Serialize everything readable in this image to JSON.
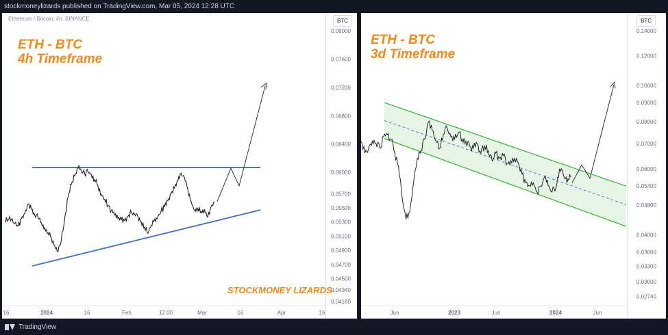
{
  "header": {
    "text": "stockmoneylizards published on TradingView.com, Mar 05, 2024 12:28 UTC"
  },
  "footer": {
    "brand": "TradingView"
  },
  "charts": {
    "left": {
      "symbol_info": "Ethereum / Bitcoin, 4h, BINANCE",
      "title_line1": "ETH - BTC",
      "title_line2": "4h Timeframe",
      "watermark": "STOCKMONEY LIZARDS",
      "currency": "BTC"
    },
    "right": {
      "title_line1": "ETH - BTC",
      "title_line2": "3d Timeframe",
      "currency": "BTC"
    }
  },
  "chart_data": [
    {
      "type": "line",
      "symbol": "Ethereum / Bitcoin, 4h, BINANCE",
      "y_scale": "linear",
      "ylim": [
        0.0412,
        0.0825
      ],
      "y_ticks": [
        "0.08000",
        "0.07600",
        "0.07200",
        "0.06800",
        "0.06400",
        "0.06000",
        "0.05700",
        "0.05500",
        "0.05300",
        "0.05100",
        "0.04900",
        "0.04700",
        "0.04500",
        "0.04340",
        "0.04180"
      ],
      "x_ticks": [
        "16",
        "2024",
        "16",
        "Feb",
        "12:00",
        "Mar",
        "16",
        "Apr",
        "16"
      ],
      "series": [
        {
          "values": [
            0.0531,
            0.0533,
            0.0534,
            0.0528,
            0.0524,
            0.0535,
            0.0542,
            0.0555,
            0.0548,
            0.054,
            0.0536,
            0.0529,
            0.0522,
            0.0515,
            0.0508,
            0.0496,
            0.0488,
            0.0505,
            0.0535,
            0.0565,
            0.0583,
            0.0595,
            0.0606,
            0.0603,
            0.0598,
            0.0601,
            0.0597,
            0.059,
            0.0581,
            0.0569,
            0.0562,
            0.0553,
            0.0546,
            0.054,
            0.0535,
            0.0533,
            0.0532,
            0.0538,
            0.0544,
            0.0541,
            0.0537,
            0.053,
            0.0523,
            0.0514,
            0.0525,
            0.0534,
            0.0537,
            0.0546,
            0.0552,
            0.056,
            0.0571,
            0.0578,
            0.0588,
            0.0599,
            0.0592,
            0.0576,
            0.0559,
            0.0546,
            0.0549,
            0.0545,
            0.0548,
            0.0537,
            0.0552,
            0.0559
          ]
        }
      ],
      "trendlines": [
        {
          "name": "resistance",
          "from": [
            0.0,
            0.0607
          ],
          "to": [
            1.0,
            0.0607
          ]
        },
        {
          "name": "support",
          "from": [
            0.0,
            0.0468
          ],
          "to": [
            1.0,
            0.0547
          ]
        }
      ],
      "projection": [
        0.0559,
        0.0606,
        0.0581,
        0.0722
      ],
      "watermark": "STOCKMONEY LIZARDS",
      "title": "ETH - BTC 4h Timeframe"
    },
    {
      "type": "line",
      "y_scale": "log",
      "ylim": [
        0.0259,
        0.156
      ],
      "y_ticks": [
        "0.14000",
        "0.12000",
        "0.10000",
        "0.09000",
        "0.08000",
        "0.07000",
        "0.06000",
        "0.05400",
        "0.04800",
        "0.04000",
        "0.03600",
        "0.03300",
        "0.03000",
        "0.02740"
      ],
      "x_ticks": [
        "Jun",
        "2023",
        "Jun",
        "2024",
        "Jun"
      ],
      "series": [
        {
          "values": [
            0.071,
            0.066,
            0.068,
            0.071,
            0.07,
            0.068,
            0.073,
            0.074,
            0.072,
            0.066,
            0.061,
            0.05,
            0.044,
            0.046,
            0.055,
            0.064,
            0.067,
            0.072,
            0.08,
            0.076,
            0.071,
            0.068,
            0.074,
            0.077,
            0.073,
            0.072,
            0.075,
            0.072,
            0.071,
            0.069,
            0.068,
            0.07,
            0.066,
            0.069,
            0.067,
            0.063,
            0.066,
            0.064,
            0.065,
            0.062,
            0.063,
            0.064,
            0.062,
            0.058,
            0.055,
            0.054,
            0.055,
            0.052,
            0.054,
            0.057,
            0.054,
            0.052,
            0.053,
            0.06,
            0.058,
            0.055,
            0.057
          ]
        }
      ],
      "channel": {
        "upper": {
          "from": [
            0.0,
            0.09
          ],
          "to": [
            1.0,
            0.0539
          ]
        },
        "mid": {
          "from": [
            0.0,
            0.0806
          ],
          "to": [
            1.0,
            0.0481
          ]
        },
        "lower": {
          "from": [
            0.0,
            0.0722
          ],
          "to": [
            1.0,
            0.0421
          ]
        }
      },
      "projection": [
        0.055,
        0.0614,
        0.0566,
        0.1004
      ],
      "title": "ETH - BTC 3d Timeframe"
    }
  ]
}
